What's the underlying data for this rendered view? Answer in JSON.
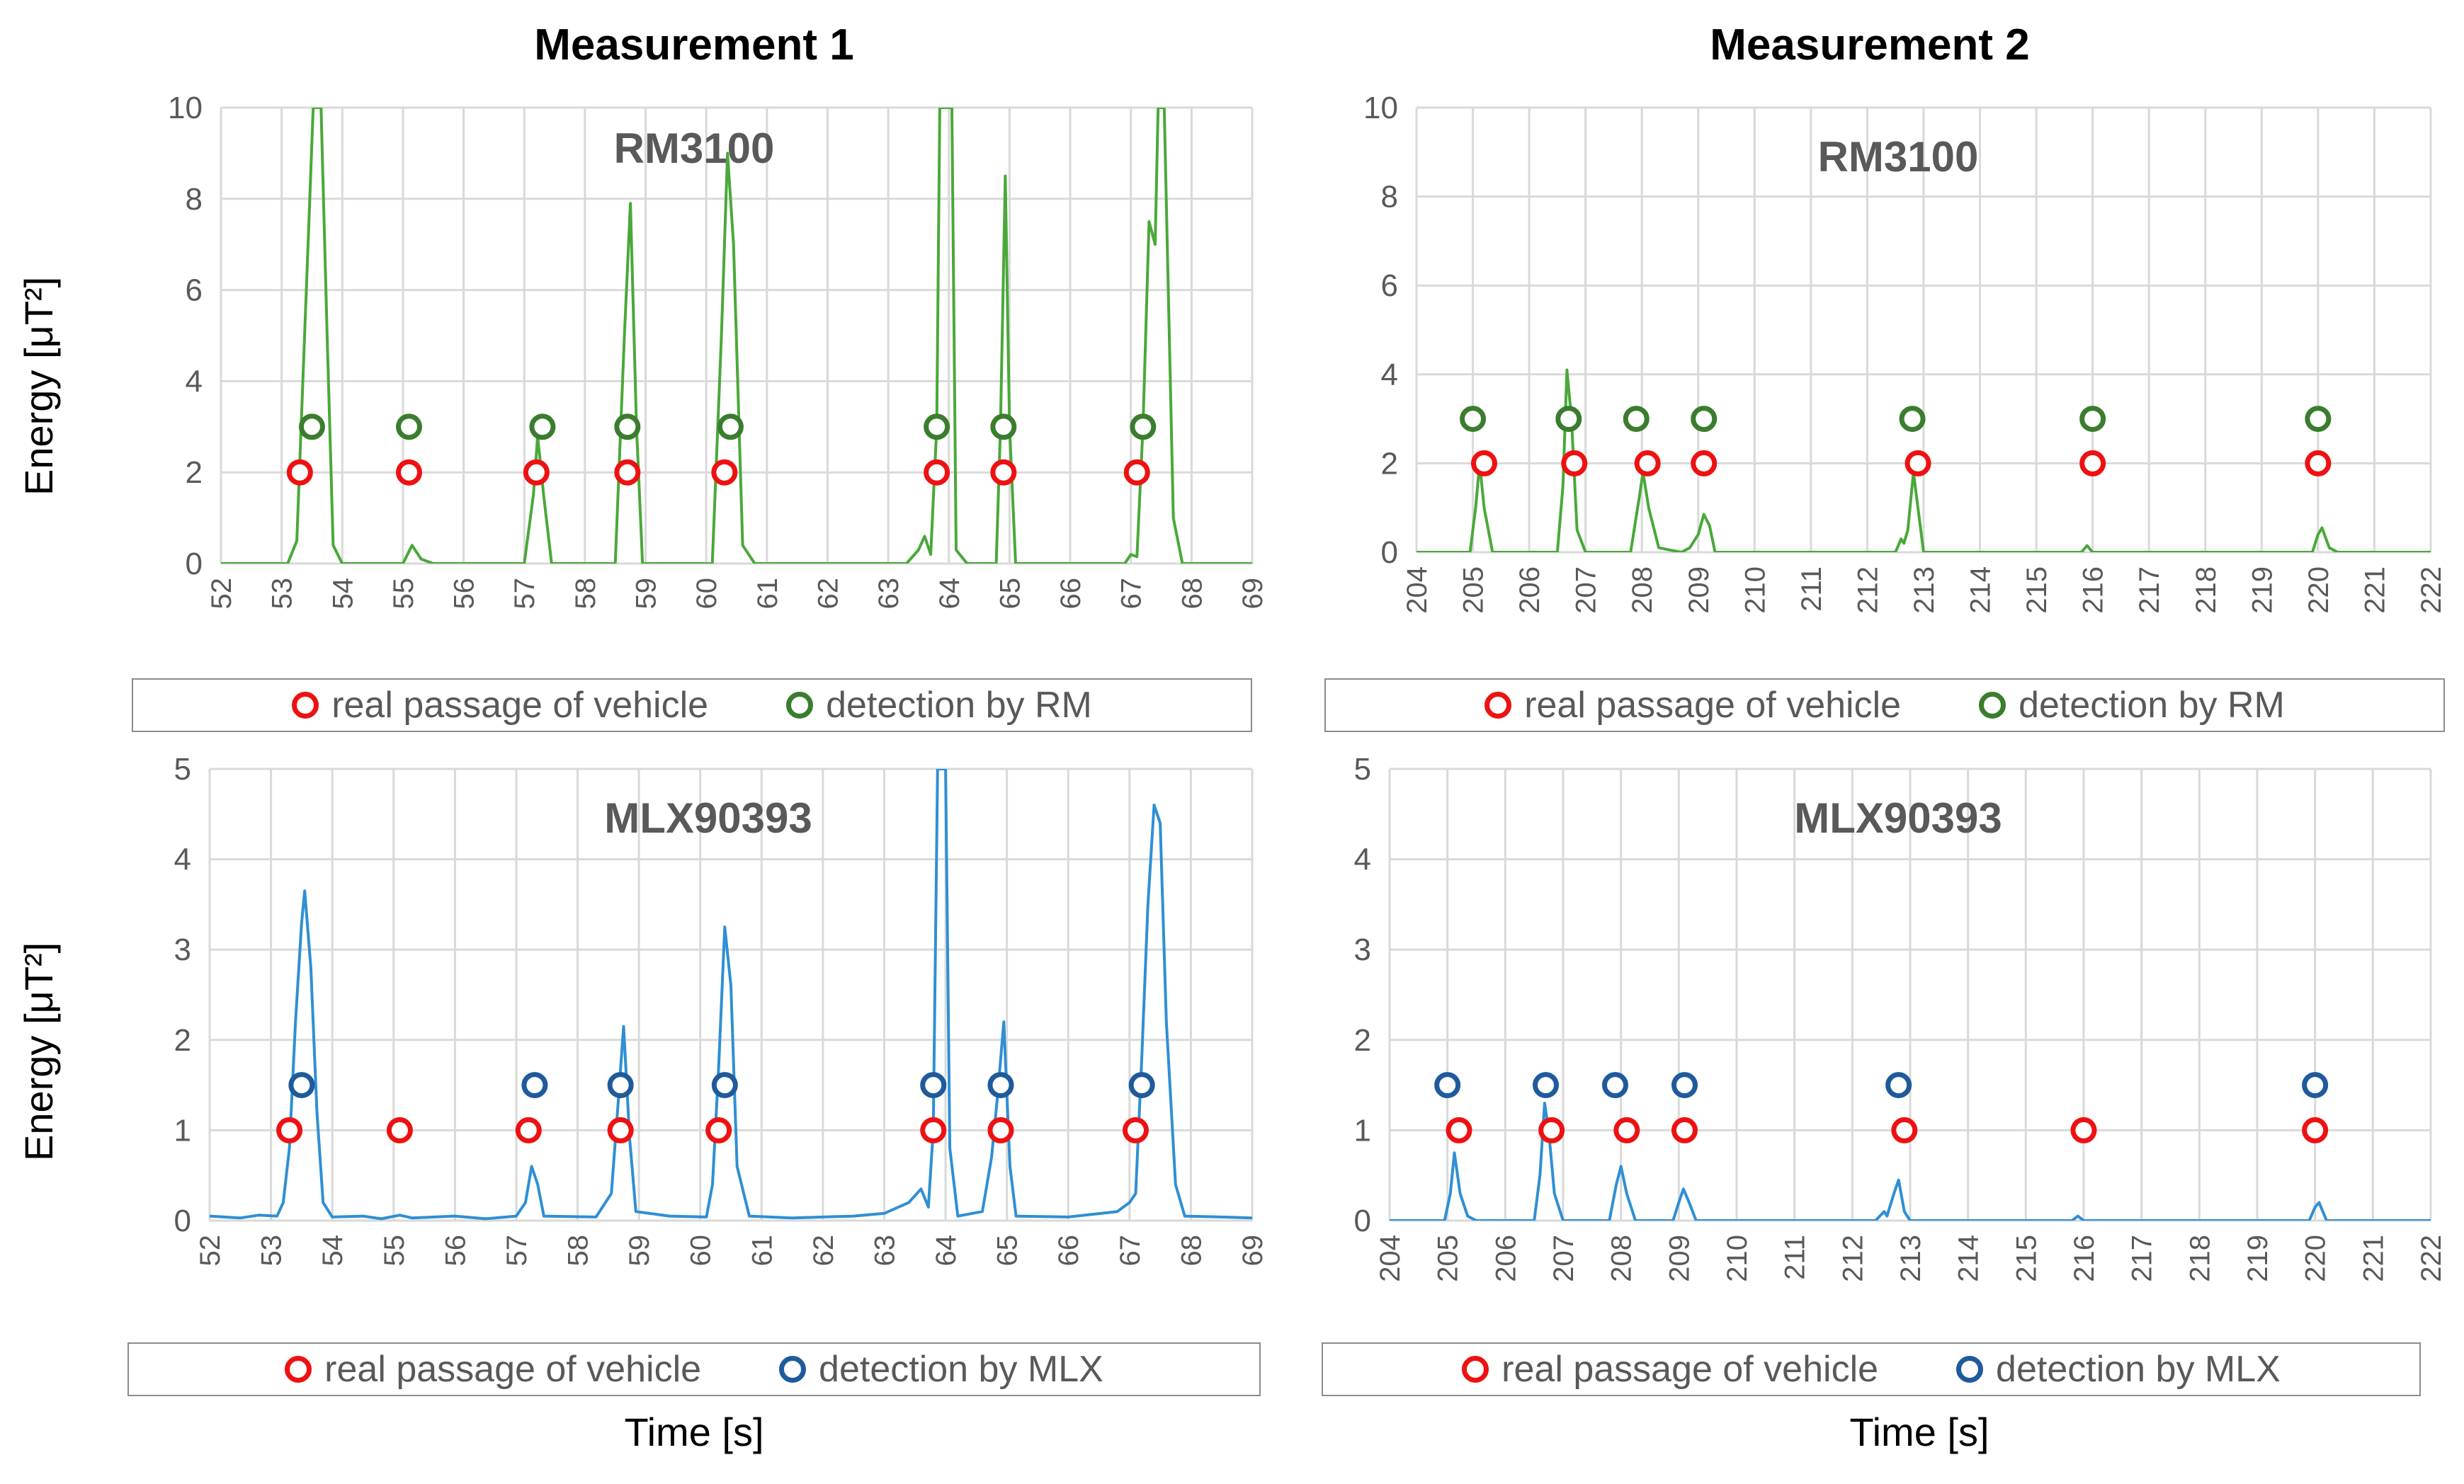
{
  "figure": {
    "col_titles": [
      "Measurement 1",
      "Measurement 2"
    ],
    "ylabel": "Energy [μT²]",
    "xlabel": "Time [s]"
  },
  "colors": {
    "rm_line": "#4aa83a",
    "mlx_line": "#2f8fd4",
    "real": "#ee1111",
    "det_rm": "#3a7d2e",
    "det_mlx": "#1f5a9c",
    "grid": "#d9d9d9",
    "axis_text": "#595959"
  },
  "legends": {
    "rm": {
      "real": "real passage of vehicle",
      "det": "detection by RM"
    },
    "mlx": {
      "real": "real passage of vehicle",
      "det": "detection by MLX"
    }
  },
  "chart_data": [
    {
      "id": "m1_rm",
      "type": "line",
      "title": "RM3100",
      "sensor": "rm",
      "xlabel": "",
      "ylabel": "Energy [μT²]",
      "xlim": [
        52,
        69
      ],
      "ylim": [
        0,
        10
      ],
      "xticks": [
        52,
        53,
        54,
        55,
        56,
        57,
        58,
        59,
        60,
        61,
        62,
        63,
        64,
        65,
        66,
        67,
        68,
        69
      ],
      "yticks": [
        0,
        2,
        4,
        6,
        8,
        10
      ],
      "series": {
        "name": "energy",
        "points": [
          [
            52,
            0
          ],
          [
            53.1,
            0
          ],
          [
            53.25,
            0.5
          ],
          [
            53.35,
            4
          ],
          [
            53.45,
            7.5
          ],
          [
            53.52,
            10
          ],
          [
            53.65,
            10
          ],
          [
            53.75,
            5
          ],
          [
            53.85,
            0.4
          ],
          [
            54,
            0
          ],
          [
            55,
            0
          ],
          [
            55.15,
            0.4
          ],
          [
            55.3,
            0.1
          ],
          [
            55.5,
            0
          ],
          [
            57,
            0
          ],
          [
            57.15,
            1.5
          ],
          [
            57.22,
            2.8
          ],
          [
            57.32,
            1.5
          ],
          [
            57.45,
            0
          ],
          [
            58.5,
            0
          ],
          [
            58.65,
            5
          ],
          [
            58.75,
            7.9
          ],
          [
            58.85,
            3
          ],
          [
            58.95,
            0
          ],
          [
            60.1,
            0
          ],
          [
            60.25,
            5
          ],
          [
            60.35,
            9.0
          ],
          [
            60.45,
            7
          ],
          [
            60.6,
            0.4
          ],
          [
            60.8,
            0
          ],
          [
            63.3,
            0
          ],
          [
            63.5,
            0.3
          ],
          [
            63.6,
            0.6
          ],
          [
            63.7,
            0.2
          ],
          [
            63.8,
            3
          ],
          [
            63.85,
            10
          ],
          [
            64.05,
            10
          ],
          [
            64.12,
            0.3
          ],
          [
            64.3,
            0
          ],
          [
            64.78,
            0
          ],
          [
            64.85,
            3
          ],
          [
            64.93,
            8.5
          ],
          [
            65.0,
            3
          ],
          [
            65.1,
            0
          ],
          [
            66.9,
            0
          ],
          [
            67.0,
            0.2
          ],
          [
            67.1,
            0.15
          ],
          [
            67.2,
            3
          ],
          [
            67.3,
            7.5
          ],
          [
            67.4,
            7
          ],
          [
            67.45,
            10
          ],
          [
            67.55,
            10
          ],
          [
            67.7,
            1
          ],
          [
            67.85,
            0
          ],
          [
            69,
            0
          ]
        ]
      },
      "real_passage": {
        "y": 2,
        "x": [
          53.3,
          55.1,
          57.2,
          58.7,
          60.3,
          63.8,
          64.9,
          67.1
        ]
      },
      "detection": {
        "y": 3,
        "x": [
          53.5,
          55.1,
          57.3,
          58.7,
          60.4,
          63.8,
          64.9,
          67.2
        ]
      }
    },
    {
      "id": "m2_rm",
      "type": "line",
      "title": "RM3100",
      "sensor": "rm",
      "xlabel": "",
      "ylabel": "",
      "xlim": [
        204,
        222
      ],
      "ylim": [
        0,
        10
      ],
      "xticks": [
        204,
        205,
        206,
        207,
        208,
        209,
        210,
        211,
        212,
        213,
        214,
        215,
        216,
        217,
        218,
        219,
        220,
        221,
        222
      ],
      "yticks": [
        0,
        2,
        4,
        6,
        8,
        10
      ],
      "series": {
        "name": "energy",
        "points": [
          [
            204,
            0
          ],
          [
            204.95,
            0
          ],
          [
            205.05,
            1
          ],
          [
            205.12,
            2
          ],
          [
            205.2,
            1
          ],
          [
            205.35,
            0
          ],
          [
            206.5,
            0
          ],
          [
            206.6,
            1.5
          ],
          [
            206.67,
            4.1
          ],
          [
            206.75,
            3
          ],
          [
            206.85,
            0.5
          ],
          [
            207,
            0
          ],
          [
            207.8,
            0
          ],
          [
            207.95,
            1.2
          ],
          [
            208.02,
            1.8
          ],
          [
            208.12,
            1
          ],
          [
            208.3,
            0.1
          ],
          [
            208.7,
            0
          ],
          [
            208.85,
            0.1
          ],
          [
            209.0,
            0.4
          ],
          [
            209.1,
            0.85
          ],
          [
            209.2,
            0.6
          ],
          [
            209.3,
            0
          ],
          [
            212.5,
            0
          ],
          [
            212.6,
            0.3
          ],
          [
            212.65,
            0.2
          ],
          [
            212.72,
            0.5
          ],
          [
            212.82,
            1.8
          ],
          [
            212.9,
            1
          ],
          [
            213.0,
            0
          ],
          [
            215.8,
            0
          ],
          [
            215.9,
            0.15
          ],
          [
            216,
            0
          ],
          [
            219.9,
            0
          ],
          [
            220,
            0.4
          ],
          [
            220.07,
            0.55
          ],
          [
            220.2,
            0.1
          ],
          [
            220.35,
            0
          ],
          [
            222,
            0
          ]
        ]
      },
      "real_passage": {
        "y": 2,
        "x": [
          205.2,
          206.8,
          208.1,
          209.1,
          212.9,
          216,
          220
        ]
      },
      "detection": {
        "y": 3,
        "x": [
          205,
          206.7,
          207.9,
          209.1,
          212.8,
          216,
          220
        ]
      }
    },
    {
      "id": "m1_mlx",
      "type": "line",
      "title": "MLX90393",
      "sensor": "mlx",
      "xlabel": "Time [s]",
      "ylabel": "Energy [μT²]",
      "xlim": [
        52,
        69
      ],
      "ylim": [
        0,
        5
      ],
      "xticks": [
        52,
        53,
        54,
        55,
        56,
        57,
        58,
        59,
        60,
        61,
        62,
        63,
        64,
        65,
        66,
        67,
        68,
        69
      ],
      "yticks": [
        0,
        1,
        2,
        3,
        4,
        5
      ],
      "series": {
        "name": "energy",
        "points": [
          [
            52,
            0.05
          ],
          [
            52.5,
            0.03
          ],
          [
            52.8,
            0.06
          ],
          [
            53.1,
            0.05
          ],
          [
            53.2,
            0.2
          ],
          [
            53.3,
            0.8
          ],
          [
            53.4,
            2.2
          ],
          [
            53.5,
            3.3
          ],
          [
            53.55,
            3.65
          ],
          [
            53.65,
            2.8
          ],
          [
            53.75,
            1.2
          ],
          [
            53.85,
            0.2
          ],
          [
            54,
            0.04
          ],
          [
            54.5,
            0.05
          ],
          [
            54.8,
            0.02
          ],
          [
            55.1,
            0.06
          ],
          [
            55.3,
            0.03
          ],
          [
            56,
            0.05
          ],
          [
            56.5,
            0.02
          ],
          [
            57,
            0.05
          ],
          [
            57.15,
            0.2
          ],
          [
            57.25,
            0.6
          ],
          [
            57.35,
            0.4
          ],
          [
            57.45,
            0.05
          ],
          [
            58.3,
            0.04
          ],
          [
            58.55,
            0.3
          ],
          [
            58.65,
            1.2
          ],
          [
            58.75,
            2.15
          ],
          [
            58.85,
            0.9
          ],
          [
            58.95,
            0.1
          ],
          [
            59.5,
            0.05
          ],
          [
            60.1,
            0.04
          ],
          [
            60.2,
            0.4
          ],
          [
            60.3,
            1.7
          ],
          [
            60.4,
            3.25
          ],
          [
            60.5,
            2.6
          ],
          [
            60.6,
            0.6
          ],
          [
            60.8,
            0.05
          ],
          [
            61.5,
            0.03
          ],
          [
            62,
            0.04
          ],
          [
            62.5,
            0.05
          ],
          [
            63,
            0.08
          ],
          [
            63.4,
            0.2
          ],
          [
            63.6,
            0.35
          ],
          [
            63.72,
            0.15
          ],
          [
            63.8,
            1
          ],
          [
            63.87,
            5
          ],
          [
            64.0,
            5
          ],
          [
            64.07,
            0.8
          ],
          [
            64.2,
            0.05
          ],
          [
            64.6,
            0.1
          ],
          [
            64.75,
            0.7
          ],
          [
            64.85,
            1.4
          ],
          [
            64.95,
            2.2
          ],
          [
            65.05,
            0.6
          ],
          [
            65.15,
            0.05
          ],
          [
            66,
            0.04
          ],
          [
            66.8,
            0.1
          ],
          [
            67.0,
            0.2
          ],
          [
            67.1,
            0.3
          ],
          [
            67.2,
            1.8
          ],
          [
            67.3,
            3.5
          ],
          [
            67.4,
            4.6
          ],
          [
            67.5,
            4.4
          ],
          [
            67.6,
            2.2
          ],
          [
            67.75,
            0.4
          ],
          [
            67.9,
            0.05
          ],
          [
            68.5,
            0.04
          ],
          [
            69,
            0.03
          ]
        ]
      },
      "real_passage": {
        "y": 1,
        "x": [
          53.3,
          55.1,
          57.2,
          58.7,
          60.3,
          63.8,
          64.9,
          67.1
        ]
      },
      "detection": {
        "y": 1.5,
        "x": [
          53.5,
          57.3,
          58.7,
          60.4,
          63.8,
          64.9,
          67.2
        ]
      }
    },
    {
      "id": "m2_mlx",
      "type": "line",
      "title": "MLX90393",
      "sensor": "mlx",
      "xlabel": "Time [s]",
      "ylabel": "",
      "xlim": [
        204,
        222
      ],
      "ylim": [
        0,
        5
      ],
      "xticks": [
        204,
        205,
        206,
        207,
        208,
        209,
        210,
        211,
        212,
        213,
        214,
        215,
        216,
        217,
        218,
        219,
        220,
        221,
        222
      ],
      "yticks": [
        0,
        1,
        2,
        3,
        4,
        5
      ],
      "series": {
        "name": "energy",
        "points": [
          [
            204,
            0
          ],
          [
            204.95,
            0
          ],
          [
            205.05,
            0.3
          ],
          [
            205.12,
            0.75
          ],
          [
            205.22,
            0.3
          ],
          [
            205.35,
            0.05
          ],
          [
            205.5,
            0
          ],
          [
            206.5,
            0
          ],
          [
            206.6,
            0.5
          ],
          [
            206.68,
            1.3
          ],
          [
            206.75,
            1
          ],
          [
            206.85,
            0.3
          ],
          [
            207,
            0
          ],
          [
            207.8,
            0
          ],
          [
            207.92,
            0.4
          ],
          [
            208.0,
            0.6
          ],
          [
            208.1,
            0.3
          ],
          [
            208.25,
            0
          ],
          [
            208.9,
            0
          ],
          [
            209.0,
            0.2
          ],
          [
            209.08,
            0.35
          ],
          [
            209.18,
            0.2
          ],
          [
            209.3,
            0
          ],
          [
            212.4,
            0
          ],
          [
            212.55,
            0.1
          ],
          [
            212.6,
            0.05
          ],
          [
            212.72,
            0.3
          ],
          [
            212.8,
            0.45
          ],
          [
            212.9,
            0.1
          ],
          [
            213.0,
            0
          ],
          [
            215.8,
            0
          ],
          [
            215.9,
            0.05
          ],
          [
            216,
            0
          ],
          [
            219.9,
            0
          ],
          [
            220,
            0.15
          ],
          [
            220.07,
            0.2
          ],
          [
            220.2,
            0
          ],
          [
            222,
            0
          ]
        ]
      },
      "real_passage": {
        "y": 1,
        "x": [
          205.2,
          206.8,
          208.1,
          209.1,
          212.9,
          216,
          220
        ]
      },
      "detection": {
        "y": 1.5,
        "x": [
          205,
          206.7,
          207.9,
          209.1,
          212.8,
          220
        ]
      }
    }
  ]
}
